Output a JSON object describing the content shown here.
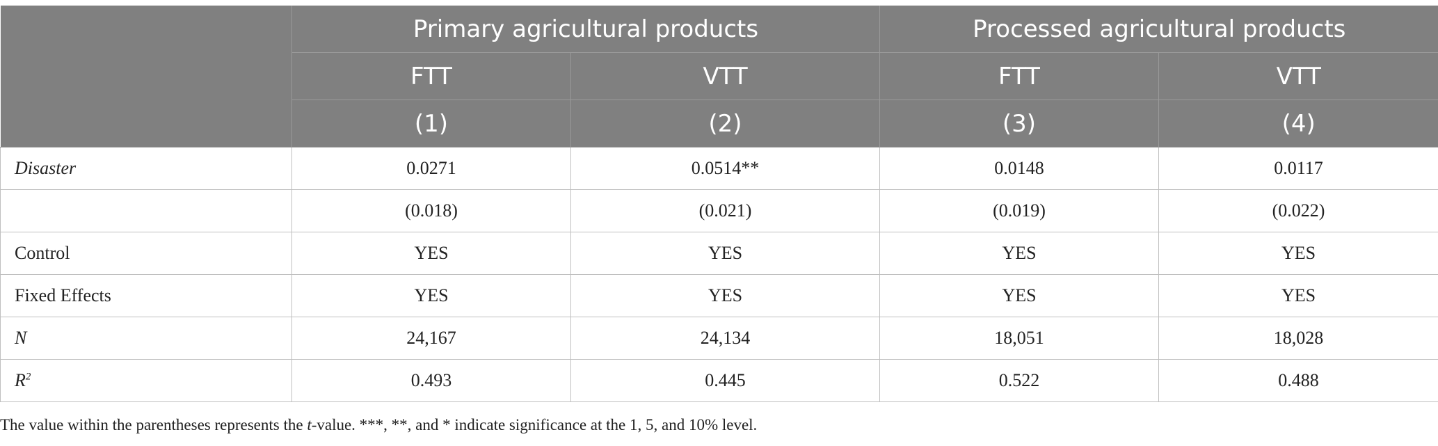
{
  "header": {
    "group1": "Primary agricultural products",
    "group2": "Processed agricultural products",
    "cols": [
      "FTT",
      "VTT",
      "FTT",
      "VTT"
    ],
    "nums": [
      "(1)",
      "(2)",
      "(3)",
      "(4)"
    ]
  },
  "rows": {
    "disaster": {
      "label": "Disaster",
      "values": [
        "0.0271",
        "0.0514**",
        "0.0148",
        "0.0117"
      ]
    },
    "tvalues": {
      "label": "",
      "values": [
        "(0.018)",
        "(0.021)",
        "(0.019)",
        "(0.022)"
      ]
    },
    "control": {
      "label": "Control",
      "values": [
        "YES",
        "YES",
        "YES",
        "YES"
      ]
    },
    "fixed": {
      "label": "Fixed Effects",
      "values": [
        "YES",
        "YES",
        "YES",
        "YES"
      ]
    },
    "n": {
      "label": "N",
      "values": [
        "24,167",
        "24,134",
        "18,051",
        "18,028"
      ]
    },
    "r2": {
      "label": "R",
      "sup": "2",
      "values": [
        "0.493",
        "0.445",
        "0.522",
        "0.488"
      ]
    }
  },
  "footnote": {
    "part1": "The value within the parentheses represents the ",
    "t": "t",
    "part2": "-value. ***, **, and * indicate significance at the 1, 5, and 10% level."
  }
}
